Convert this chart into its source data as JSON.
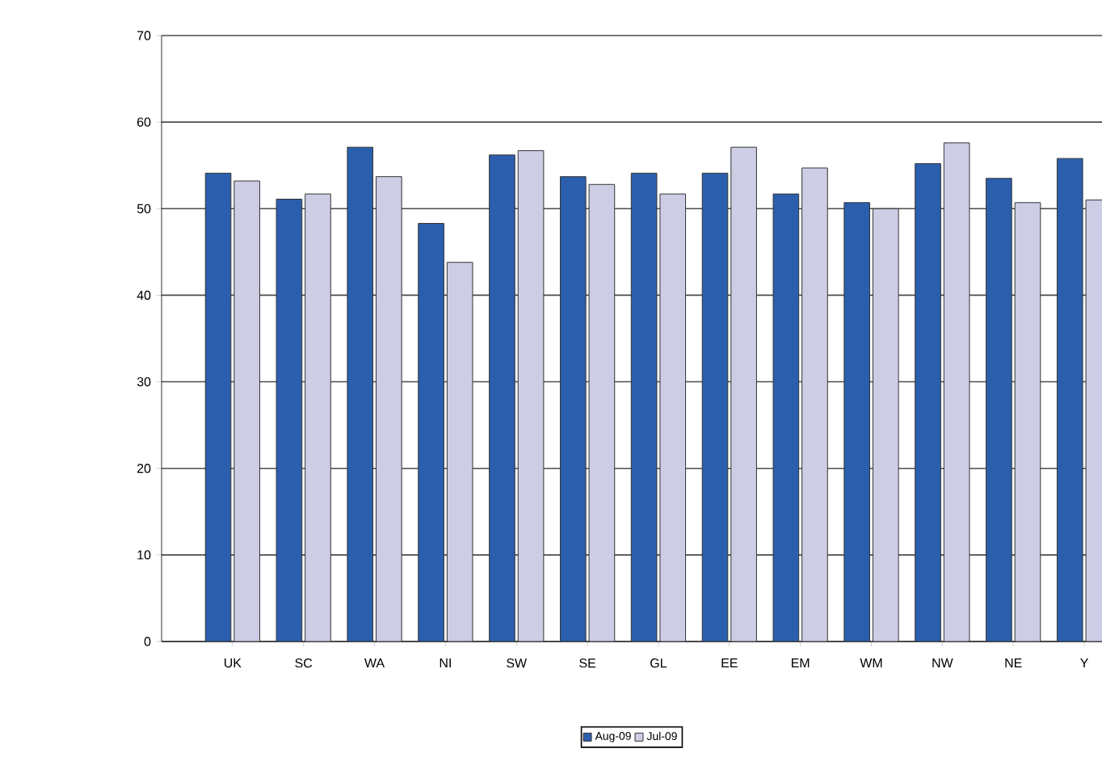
{
  "chart_data": {
    "type": "bar",
    "categories": [
      "UK",
      "SC",
      "WA",
      "NI",
      "SW",
      "SE",
      "GL",
      "EE",
      "EM",
      "WM",
      "NW",
      "NE",
      "Y"
    ],
    "series": [
      {
        "name": "Aug-09",
        "color": "#2b5fad",
        "values": [
          54.1,
          51.1,
          57.1,
          48.3,
          56.2,
          53.7,
          54.1,
          54.1,
          51.7,
          50.7,
          55.2,
          53.5,
          55.8
        ]
      },
      {
        "name": "Jul-09",
        "color": "#cdcde6",
        "values": [
          53.2,
          51.7,
          53.7,
          43.8,
          56.7,
          52.8,
          51.7,
          57.1,
          54.7,
          50.0,
          57.6,
          50.7,
          51.0
        ]
      }
    ],
    "ylim": [
      0,
      70
    ],
    "yticks": [
      0,
      10,
      20,
      30,
      40,
      50,
      60,
      70
    ],
    "grid": "y",
    "legend": "bottom"
  }
}
